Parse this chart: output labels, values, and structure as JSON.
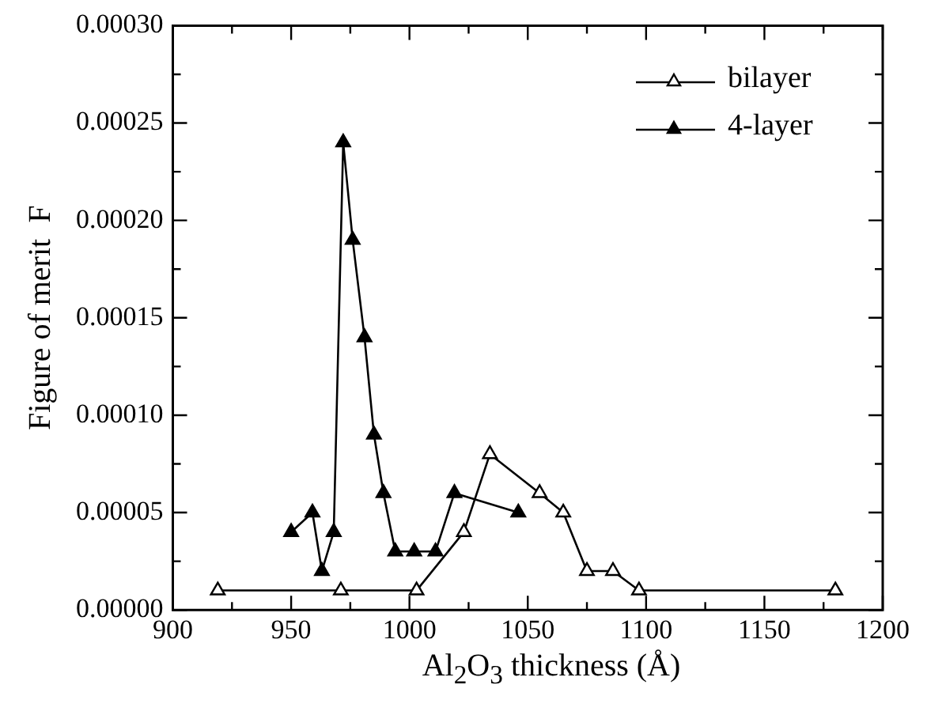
{
  "chart_data": {
    "type": "line",
    "xlabel": "Al$_{2}$O$_{3}$ thickness (Å)",
    "ylabel": "Figure of merit  F",
    "xlim": [
      900,
      1200
    ],
    "xticks": [
      900,
      {
        "value": 925,
        "label": null
      },
      950,
      {
        "value": 975,
        "label": null
      },
      1000,
      {
        "value": 1025,
        "label": null
      },
      1050,
      {
        "value": 1075,
        "label": null
      },
      1100,
      {
        "value": 1125,
        "label": null
      },
      1150,
      {
        "value": 1175,
        "label": null
      },
      1200
    ],
    "ylim": [
      0,
      0.0003
    ],
    "yticks": [
      {
        "value": 0,
        "label": "0.00000"
      },
      {
        "value": 2.5e-05,
        "label": null
      },
      {
        "value": 5e-05,
        "label": "0.00005"
      },
      {
        "value": 7.5e-05,
        "label": null
      },
      {
        "value": 0.0001,
        "label": "0.00010"
      },
      {
        "value": 0.000125,
        "label": null
      },
      {
        "value": 0.00015,
        "label": "0.00015"
      },
      {
        "value": 0.000175,
        "label": null
      },
      {
        "value": 0.0002,
        "label": "0.00020"
      },
      {
        "value": 0.000225,
        "label": null
      },
      {
        "value": 0.00025,
        "label": "0.00025"
      },
      {
        "value": 0.000275,
        "label": null
      },
      {
        "value": 0.0003,
        "label": "0.00030"
      }
    ],
    "grid": false,
    "legend": "top right",
    "marker": "triangle",
    "line_style": "solid",
    "series": [
      {
        "name": "bilayer",
        "color": "#000000",
        "x": [
          919,
          971,
          1003,
          1023,
          1034,
          1055,
          1065,
          1075,
          1086,
          1097,
          1180
        ],
        "values": [
          1e-05,
          1e-05,
          1e-05,
          4e-05,
          8e-05,
          6e-05,
          5e-05,
          2e-05,
          2e-05,
          1e-05,
          1e-05
        ]
      },
      {
        "name": "4-layer",
        "color": "#000000",
        "x": [
          950,
          959,
          963,
          968,
          972,
          976,
          981,
          985,
          989,
          994,
          1002,
          1011,
          1019,
          1046
        ],
        "values": [
          4e-05,
          5e-05,
          2e-05,
          4e-05,
          0.00024,
          0.00019,
          0.00014,
          9e-05,
          6e-05,
          3e-05,
          3e-05,
          3e-05,
          6e-05,
          5e-05
        ]
      }
    ]
  }
}
